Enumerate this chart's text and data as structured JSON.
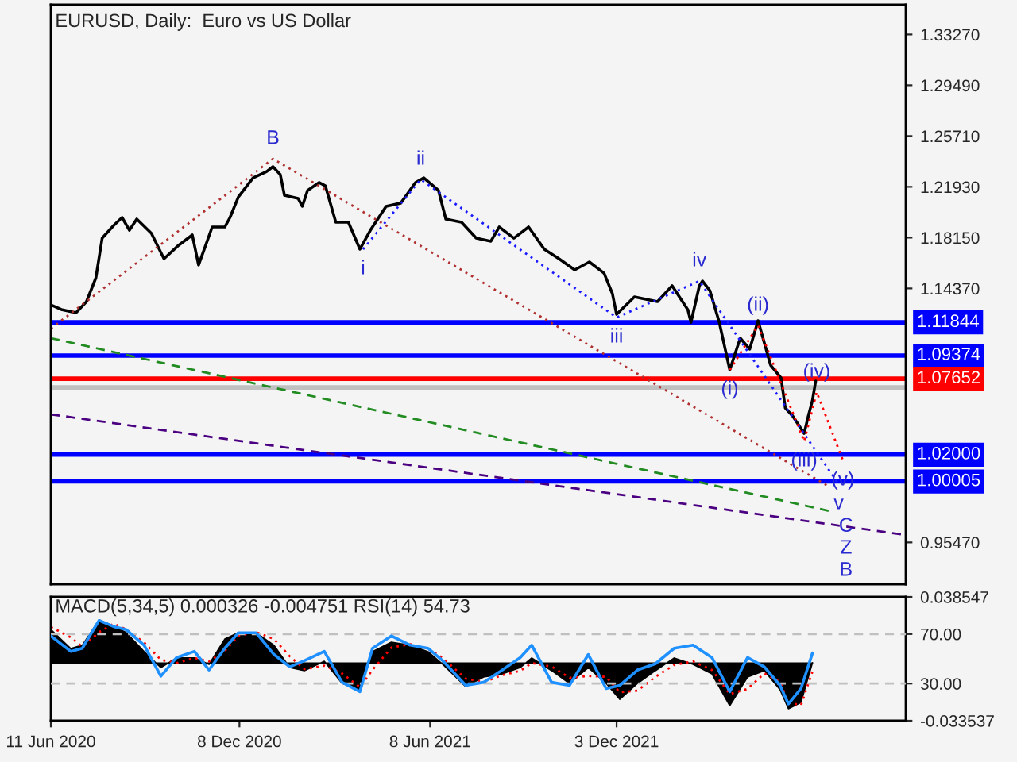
{
  "chart_data": [
    {
      "type": "line",
      "title": "EURUSD, Daily:  Euro vs US Dollar",
      "xlim": [
        "2020-06-11",
        "2022-09-05"
      ],
      "ylim": [
        0.9236,
        1.3548
      ],
      "yticks": [
        {
          "value": 1.3327,
          "label": "1.33270"
        },
        {
          "value": 1.2949,
          "label": "1.29490"
        },
        {
          "value": 1.2571,
          "label": "1.25710"
        },
        {
          "value": 1.2193,
          "label": "1.21930"
        },
        {
          "value": 1.1815,
          "label": "1.18150"
        },
        {
          "value": 1.1437,
          "label": "1.14370"
        },
        {
          "value": 0.9547,
          "label": "0.95470"
        }
      ],
      "tick_labels": "y",
      "grid": false,
      "series": [
        {
          "color": "#000000",
          "line_style": "solid",
          "x": [
            "2020-06-11",
            "2020-06-21",
            "2020-07-05",
            "2020-07-15",
            "2020-07-24",
            "2020-07-30",
            "2020-08-10",
            "2020-08-18",
            "2020-08-25",
            "2020-09-01",
            "2020-09-15",
            "2020-09-27",
            "2020-10-10",
            "2020-10-24",
            "2020-10-30",
            "2020-11-12",
            "2020-11-24",
            "2020-11-29",
            "2020-12-07",
            "2020-12-21",
            "2021-01-03",
            "2021-01-09",
            "2021-01-16",
            "2021-01-20",
            "2021-02-02",
            "2021-02-06",
            "2021-02-11",
            "2021-02-22",
            "2021-02-28",
            "2021-03-10",
            "2021-03-22",
            "2021-04-02",
            "2021-04-12",
            "2021-04-27",
            "2021-05-11",
            "2021-05-25",
            "2021-06-02",
            "2021-06-16",
            "2021-06-23",
            "2021-07-08",
            "2021-07-22",
            "2021-08-05",
            "2021-08-13",
            "2021-08-27",
            "2021-09-10",
            "2021-09-25",
            "2021-10-09",
            "2021-10-24",
            "2021-11-07",
            "2021-11-21",
            "2021-11-29",
            "2021-12-03",
            "2021-12-20",
            "2022-01-11",
            "2022-01-25",
            "2022-02-09",
            "2022-02-12",
            "2022-02-20",
            "2022-02-23",
            "2022-03-02",
            "2022-03-11",
            "2022-03-21",
            "2022-03-31",
            "2022-04-09",
            "2022-04-17",
            "2022-04-29",
            "2022-05-09",
            "2022-05-13",
            "2022-05-20",
            "2022-05-31",
            "2022-06-04",
            "2022-06-08",
            "2022-06-11"
          ],
          "values": [
            1.1315,
            1.128,
            1.1256,
            1.1339,
            1.1516,
            1.1811,
            1.1906,
            1.1965,
            1.187,
            1.1953,
            1.1847,
            1.1658,
            1.1752,
            1.1835,
            1.1611,
            1.1894,
            1.1894,
            1.1965,
            1.2118,
            1.226,
            1.2307,
            1.2343,
            1.2284,
            1.213,
            1.2107,
            1.2048,
            1.2166,
            1.2225,
            1.2201,
            1.193,
            1.193,
            1.1729,
            1.187,
            1.2048,
            1.2072,
            1.2225,
            1.226,
            1.2166,
            1.1953,
            1.193,
            1.1811,
            1.1788,
            1.1894,
            1.1811,
            1.1894,
            1.1729,
            1.1658,
            1.1575,
            1.1634,
            1.1551,
            1.1398,
            1.1244,
            1.1374,
            1.1339,
            1.1457,
            1.1278,
            1.1185,
            1.1457,
            1.1492,
            1.1421,
            1.1185,
            1.0831,
            1.1067,
            1.0985,
            1.1197,
            1.0866,
            1.0771,
            1.0547,
            1.0488,
            1.0358,
            1.0488,
            1.0606,
            1.0748
          ]
        },
        {
          "color": "#b03030",
          "line_style": "dotted",
          "x": [
            "2020-06-11",
            "2021-01-09",
            "2022-06-25"
          ],
          "values": [
            1.1138,
            1.2402,
            0.9956
          ]
        },
        {
          "color": "#1a1aff",
          "line_style": "dotted",
          "x": [
            "2021-04-05",
            "2021-05-30",
            "2021-12-03",
            "2022-02-20",
            "2022-07-03"
          ],
          "values": [
            1.1728,
            1.2248,
            1.1221,
            1.1492,
            0.998
          ]
        },
        {
          "color": "#ff0000",
          "line_style": "dotted",
          "x": [
            "2022-03-21",
            "2022-04-17",
            "2022-05-31",
            "2022-06-12",
            "2022-07-07"
          ],
          "values": [
            1.0831,
            1.1161,
            1.0299,
            1.0665,
            1.0157
          ]
        },
        {
          "color": "#228b22",
          "line_style": "dashed",
          "x": [
            "2020-06-11",
            "2022-06-25"
          ],
          "values": [
            1.1067,
            0.9779
          ]
        },
        {
          "color": "#4b0082",
          "line_style": "dashed",
          "x": [
            "2020-06-11",
            "2022-09-05"
          ],
          "values": [
            1.05,
            0.9602
          ]
        }
      ],
      "ref_lines": [
        {
          "axis": "y",
          "value": 1.11844,
          "label": "1.11844",
          "color": "#0000ff"
        },
        {
          "axis": "y",
          "value": 1.09374,
          "label": "1.09374",
          "color": "#0000ff"
        },
        {
          "axis": "y",
          "value": 1.07652,
          "label": "1.07652",
          "color": "#ff0000"
        },
        {
          "axis": "y",
          "value": 1.07,
          "color": "#c0c0c0"
        },
        {
          "axis": "y",
          "value": 1.02,
          "label": "1.02000",
          "color": "#0000ff"
        },
        {
          "axis": "y",
          "value": 1.00005,
          "label": "1.00005",
          "color": "#0000ff"
        }
      ],
      "annotations": [
        {
          "text": "B",
          "x": "2021-01-09",
          "y": 1.2402
        },
        {
          "text": "i",
          "x": "2021-04-05",
          "y": 1.1728
        },
        {
          "text": "ii",
          "x": "2021-05-30",
          "y": 1.2248
        },
        {
          "text": "iii",
          "x": "2021-12-03",
          "y": 1.1221
        },
        {
          "text": "iv",
          "x": "2022-02-20",
          "y": 1.1492
        },
        {
          "text": "(i)",
          "x": "2022-03-21",
          "y": 1.0831
        },
        {
          "text": "(ii)",
          "x": "2022-04-17",
          "y": 1.1161
        },
        {
          "text": "(iii)",
          "x": "2022-05-31",
          "y": 1.0299
        },
        {
          "text": "(iv)",
          "x": "2022-06-12",
          "y": 1.0665
        },
        {
          "text": "(v)",
          "x": "2022-07-07",
          "y": 1.0157
        },
        {
          "text": "v",
          "x": "2022-07-03",
          "y": 0.998
        },
        {
          "text": "C",
          "x": "2022-07-10",
          "y": 0.9665
        },
        {
          "text": "Z",
          "x": "2022-07-10",
          "y": 0.9665
        },
        {
          "text": "B",
          "x": "2022-07-10",
          "y": 0.9665
        }
      ]
    },
    {
      "type": "area",
      "title": "MACD(5,34,5) 0.000326 -0.004751 RSI(14) 54.73",
      "xlim": [
        "2020-06-11",
        "2022-09-05"
      ],
      "xticks": [
        {
          "value": "2020-06-11",
          "label": "11 Jun 2020"
        },
        {
          "value": "2020-12-08",
          "label": "8 Dec 2020"
        },
        {
          "value": "2021-06-08",
          "label": "8 Jun 2021"
        },
        {
          "value": "2021-12-03",
          "label": "3 Dec 2021"
        }
      ],
      "ylim": [
        -0.033537,
        0.038547
      ],
      "yticks": [
        0.038547,
        -0.033537
      ],
      "y2lim": [
        0,
        100
      ],
      "y2ticks": [
        {
          "value": 70,
          "label": "70.00"
        },
        {
          "value": 30,
          "label": "30.00"
        }
      ],
      "grid": false,
      "x": [
        "2020-06-11",
        "2020-06-30",
        "2020-07-11",
        "2020-07-27",
        "2020-08-10",
        "2020-08-22",
        "2020-09-08",
        "2020-09-24",
        "2020-10-09",
        "2020-10-26",
        "2020-11-09",
        "2020-11-24",
        "2020-12-07",
        "2020-12-24",
        "2021-01-10",
        "2021-01-25",
        "2021-02-08",
        "2021-02-27",
        "2021-03-16",
        "2021-04-02",
        "2021-04-14",
        "2021-05-02",
        "2021-05-20",
        "2021-06-06",
        "2021-06-20",
        "2021-07-12",
        "2021-07-29",
        "2021-08-16",
        "2021-09-02",
        "2021-09-13",
        "2021-10-02",
        "2021-10-19",
        "2021-11-06",
        "2021-11-23",
        "2021-12-06",
        "2021-12-23",
        "2022-01-09",
        "2022-01-27",
        "2022-02-14",
        "2022-03-04",
        "2022-03-21",
        "2022-04-07",
        "2022-04-23",
        "2022-05-08",
        "2022-05-16",
        "2022-05-28",
        "2022-06-08"
      ],
      "series": [
        {
          "type": "area",
          "color": "#000000",
          "values": [
            0.0196,
            0.0085,
            0.0104,
            0.0251,
            0.0214,
            0.0177,
            0.0067,
            -0.0026,
            0.003,
            0.003,
            -0.0007,
            0.014,
            0.0177,
            0.0177,
            0.0104,
            -0.0026,
            -0.0044,
            0.0011,
            -0.0118,
            -0.0155,
            0.0067,
            0.0122,
            0.0104,
            0.0067,
            -0.0007,
            -0.0137,
            -0.0081,
            -0.0063,
            -0.0026,
            0.003,
            -0.0044,
            -0.0118,
            -0.0026,
            -0.0118,
            -0.0211,
            -0.0118,
            -0.0044,
            0.003,
            -0.0007,
            -0.0063,
            -0.0248,
            -0.0081,
            -0.0044,
            -0.0155,
            -0.0266,
            -0.0229,
            0.0003
          ]
        },
        {
          "type": "line",
          "color": "#ff0000",
          "line_style": "dotted",
          "values": [
            0.021,
            0.015,
            0.0095,
            0.018,
            0.023,
            0.0195,
            0.012,
            0.002,
            0.0,
            0.003,
            0.001,
            0.007,
            0.016,
            0.018,
            0.014,
            0.004,
            -0.0035,
            -0.0015,
            -0.006,
            -0.014,
            -0.004,
            0.009,
            0.011,
            0.0085,
            0.003,
            -0.009,
            -0.011,
            -0.007,
            -0.0045,
            0.0,
            -0.002,
            -0.0085,
            -0.0075,
            -0.008,
            -0.017,
            -0.016,
            -0.008,
            -0.001,
            0.001,
            -0.004,
            -0.018,
            -0.015,
            -0.006,
            -0.011,
            -0.023,
            -0.0245,
            -0.0047
          ]
        },
        {
          "type": "line",
          "axis": "y2",
          "color": "#1e90ff",
          "line_style": "solid",
          "values": [
            68.5,
            56,
            58.5,
            81,
            76,
            73.5,
            61,
            36,
            51,
            56,
            41,
            58.5,
            71,
            71,
            53.5,
            43.5,
            48.5,
            56,
            31,
            23.5,
            58.5,
            68.5,
            61,
            58.5,
            48.5,
            28.5,
            31,
            41,
            51,
            61,
            31,
            28.5,
            53.5,
            26,
            28.5,
            41,
            46,
            58.5,
            61,
            51,
            23.5,
            51,
            43.5,
            28.5,
            13.5,
            26,
            54.73
          ]
        }
      ],
      "ref_lines": [
        {
          "axis": "y2",
          "value": 70,
          "color": "#c0c0c0",
          "line_style": "dashed"
        },
        {
          "axis": "y2",
          "value": 30,
          "color": "#c0c0c0",
          "line_style": "dashed"
        }
      ]
    }
  ]
}
